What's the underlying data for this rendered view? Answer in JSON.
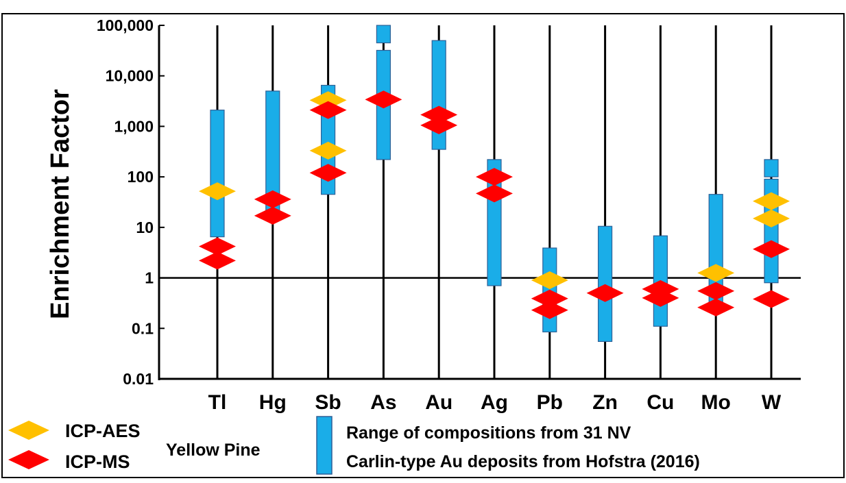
{
  "header_fragment": "",
  "chart_data": {
    "type": "range",
    "ylabel": "Enrichment Factor",
    "yscale": "log",
    "ylim": [
      0.01,
      100000
    ],
    "y_ticks": [
      {
        "value": 100000,
        "label": "100,000"
      },
      {
        "value": 10000,
        "label": "10,000"
      },
      {
        "value": 1000,
        "label": "1,000"
      },
      {
        "value": 100,
        "label": "100"
      },
      {
        "value": 10,
        "label": "10"
      },
      {
        "value": 1,
        "label": "1"
      },
      {
        "value": 0.1,
        "label": "0.1"
      },
      {
        "value": 0.01,
        "label": "0.01"
      }
    ],
    "reference_line": 1,
    "categories": [
      "Tl",
      "Hg",
      "Sb",
      "As",
      "Au",
      "Ag",
      "Pb",
      "Zn",
      "Cu",
      "Mo",
      "W"
    ],
    "ranges": [
      {
        "element": "Tl",
        "bars": [
          [
            6.5,
            2100
          ]
        ]
      },
      {
        "element": "Hg",
        "bars": [
          [
            21,
            5000
          ]
        ]
      },
      {
        "element": "Sb",
        "bars": [
          [
            45,
            6500
          ]
        ]
      },
      {
        "element": "As",
        "bars": [
          [
            220,
            32000
          ],
          [
            45000,
            100000
          ]
        ]
      },
      {
        "element": "Au",
        "bars": [
          [
            350,
            50000
          ]
        ]
      },
      {
        "element": "Ag",
        "bars": [
          [
            0.7,
            220
          ]
        ]
      },
      {
        "element": "Pb",
        "bars": [
          [
            0.085,
            3.9
          ]
        ]
      },
      {
        "element": "Zn",
        "bars": [
          [
            0.055,
            10.5
          ]
        ]
      },
      {
        "element": "Cu",
        "bars": [
          [
            0.11,
            6.8
          ]
        ]
      },
      {
        "element": "Mo",
        "bars": [
          [
            0.27,
            45
          ]
        ]
      },
      {
        "element": "W",
        "bars": [
          [
            0.8,
            90
          ],
          [
            100,
            220
          ]
        ]
      }
    ],
    "series": [
      {
        "name": "ICP-AES",
        "color": "#FFC000",
        "points": [
          {
            "element": "Tl",
            "value": 52
          },
          {
            "element": "Sb",
            "value": 3300
          },
          {
            "element": "Sb",
            "value": 330
          },
          {
            "element": "Pb",
            "value": 0.9
          },
          {
            "element": "Mo",
            "value": 1.25
          },
          {
            "element": "W",
            "value": 33
          },
          {
            "element": "W",
            "value": 15
          }
        ]
      },
      {
        "name": "ICP-MS",
        "color": "#FF0000",
        "points": [
          {
            "element": "Tl",
            "value": 4.2
          },
          {
            "element": "Tl",
            "value": 2.2
          },
          {
            "element": "Hg",
            "value": 36
          },
          {
            "element": "Hg",
            "value": 17
          },
          {
            "element": "Sb",
            "value": 2100
          },
          {
            "element": "Sb",
            "value": 120
          },
          {
            "element": "As",
            "value": 3400
          },
          {
            "element": "Au",
            "value": 1700
          },
          {
            "element": "Au",
            "value": 1050
          },
          {
            "element": "Ag",
            "value": 100
          },
          {
            "element": "Ag",
            "value": 47
          },
          {
            "element": "Pb",
            "value": 0.39
          },
          {
            "element": "Pb",
            "value": 0.23
          },
          {
            "element": "Zn",
            "value": 0.5
          },
          {
            "element": "Cu",
            "value": 0.6
          },
          {
            "element": "Cu",
            "value": 0.4
          },
          {
            "element": "Mo",
            "value": 0.55
          },
          {
            "element": "Mo",
            "value": 0.26
          },
          {
            "element": "W",
            "value": 3.7
          },
          {
            "element": "W",
            "value": 0.38
          }
        ]
      }
    ],
    "range_color": "#1AADE8",
    "range_stroke": "#2E5F95",
    "legend": {
      "aes_label": "ICP-AES",
      "ms_label": "ICP-MS",
      "group_label": "Yellow Pine",
      "range_line1": "Range of compositions from 31 NV",
      "range_line2": "Carlin-type Au deposits from Hofstra (2016)"
    }
  }
}
